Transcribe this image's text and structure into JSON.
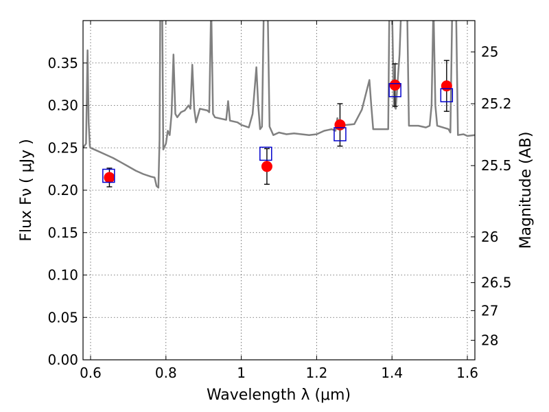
{
  "chart_data": {
    "type": "scatter",
    "title": "",
    "xlabel": "Wavelength  λ (μm)",
    "ylabel": "Flux  Fν  ( μJy )",
    "ylabel_right": "Magnitude (AB)",
    "xlim": [
      0.58,
      1.62
    ],
    "ylim": [
      0.0,
      0.4
    ],
    "grid": true,
    "x_ticks": [
      0.6,
      0.8,
      1.0,
      1.2,
      1.4,
      1.6
    ],
    "x_tick_labels": [
      "0.6",
      "0.8",
      "1",
      "1.2",
      "1.4",
      "1.6"
    ],
    "y_ticks": [
      0.0,
      0.05,
      0.1,
      0.15,
      0.2,
      0.25,
      0.3,
      0.35
    ],
    "y_tick_labels": [
      "0.00",
      "0.05",
      "0.10",
      "0.15",
      "0.20",
      "0.25",
      "0.30",
      "0.35"
    ],
    "right_ticks": [
      {
        "label": "25",
        "flux": 0.363
      },
      {
        "label": "25.2",
        "flux": 0.302
      },
      {
        "label": "25.5",
        "flux": 0.229
      },
      {
        "label": "26",
        "flux": 0.145
      },
      {
        "label": "26.5",
        "flux": 0.091
      },
      {
        "label": "27",
        "flux": 0.058
      },
      {
        "label": "28",
        "flux": 0.023
      }
    ],
    "series": [
      {
        "name": "model spectrum",
        "kind": "line",
        "color": "#808080",
        "points": [
          [
            0.58,
            0.25
          ],
          [
            0.588,
            0.255
          ],
          [
            0.59,
            0.31
          ],
          [
            0.592,
            0.365
          ],
          [
            0.595,
            0.28
          ],
          [
            0.598,
            0.252
          ],
          [
            0.6,
            0.25
          ],
          [
            0.62,
            0.246
          ],
          [
            0.64,
            0.242
          ],
          [
            0.66,
            0.238
          ],
          [
            0.68,
            0.233
          ],
          [
            0.7,
            0.228
          ],
          [
            0.72,
            0.223
          ],
          [
            0.74,
            0.219
          ],
          [
            0.76,
            0.216
          ],
          [
            0.77,
            0.215
          ],
          [
            0.775,
            0.205
          ],
          [
            0.78,
            0.203
          ],
          [
            0.783,
            0.26
          ],
          [
            0.785,
            0.42
          ],
          [
            0.79,
            0.42
          ],
          [
            0.793,
            0.248
          ],
          [
            0.8,
            0.255
          ],
          [
            0.805,
            0.27
          ],
          [
            0.81,
            0.265
          ],
          [
            0.815,
            0.29
          ],
          [
            0.82,
            0.36
          ],
          [
            0.825,
            0.29
          ],
          [
            0.83,
            0.286
          ],
          [
            0.84,
            0.292
          ],
          [
            0.85,
            0.294
          ],
          [
            0.86,
            0.3
          ],
          [
            0.865,
            0.296
          ],
          [
            0.87,
            0.348
          ],
          [
            0.875,
            0.296
          ],
          [
            0.88,
            0.28
          ],
          [
            0.89,
            0.296
          ],
          [
            0.91,
            0.294
          ],
          [
            0.915,
            0.292
          ],
          [
            0.92,
            0.42
          ],
          [
            0.925,
            0.29
          ],
          [
            0.93,
            0.286
          ],
          [
            0.95,
            0.284
          ],
          [
            0.96,
            0.283
          ],
          [
            0.965,
            0.305
          ],
          [
            0.97,
            0.282
          ],
          [
            0.99,
            0.28
          ],
          [
            1.0,
            0.277
          ],
          [
            1.02,
            0.274
          ],
          [
            1.03,
            0.29
          ],
          [
            1.04,
            0.345
          ],
          [
            1.045,
            0.3
          ],
          [
            1.05,
            0.272
          ],
          [
            1.055,
            0.275
          ],
          [
            1.06,
            0.42
          ],
          [
            1.07,
            0.42
          ],
          [
            1.075,
            0.275
          ],
          [
            1.085,
            0.265
          ],
          [
            1.1,
            0.268
          ],
          [
            1.12,
            0.266
          ],
          [
            1.14,
            0.267
          ],
          [
            1.16,
            0.266
          ],
          [
            1.18,
            0.265
          ],
          [
            1.2,
            0.266
          ],
          [
            1.22,
            0.27
          ],
          [
            1.23,
            0.271
          ],
          [
            1.24,
            0.272
          ],
          [
            1.25,
            0.27
          ],
          [
            1.255,
            0.285
          ],
          [
            1.26,
            0.276
          ],
          [
            1.28,
            0.277
          ],
          [
            1.3,
            0.278
          ],
          [
            1.32,
            0.295
          ],
          [
            1.34,
            0.33
          ],
          [
            1.345,
            0.3
          ],
          [
            1.35,
            0.272
          ],
          [
            1.38,
            0.272
          ],
          [
            1.39,
            0.272
          ],
          [
            1.393,
            0.42
          ],
          [
            1.4,
            0.42
          ],
          [
            1.405,
            0.3
          ],
          [
            1.41,
            0.296
          ],
          [
            1.42,
            0.36
          ],
          [
            1.425,
            0.42
          ],
          [
            1.44,
            0.42
          ],
          [
            1.445,
            0.276
          ],
          [
            1.47,
            0.276
          ],
          [
            1.49,
            0.274
          ],
          [
            1.5,
            0.276
          ],
          [
            1.505,
            0.3
          ],
          [
            1.51,
            0.42
          ],
          [
            1.515,
            0.3
          ],
          [
            1.52,
            0.276
          ],
          [
            1.55,
            0.272
          ],
          [
            1.555,
            0.268
          ],
          [
            1.56,
            0.42
          ],
          [
            1.57,
            0.42
          ],
          [
            1.575,
            0.265
          ],
          [
            1.59,
            0.266
          ],
          [
            1.6,
            0.264
          ],
          [
            1.62,
            0.265
          ]
        ]
      },
      {
        "name": "model photometry",
        "kind": "open-square",
        "color": "#0000cc",
        "points": [
          [
            0.648,
            0.217
          ],
          [
            1.065,
            0.243
          ],
          [
            1.262,
            0.266
          ],
          [
            1.408,
            0.318
          ],
          [
            1.545,
            0.312
          ]
        ]
      },
      {
        "name": "observed",
        "kind": "filled-circle-errorbar",
        "color": "#ff0000",
        "points": [
          {
            "x": 0.65,
            "y": 0.215,
            "err": 0.011
          },
          {
            "x": 1.068,
            "y": 0.228,
            "err": 0.021
          },
          {
            "x": 1.262,
            "y": 0.277,
            "err": 0.025
          },
          {
            "x": 1.408,
            "y": 0.324,
            "err": 0.025
          },
          {
            "x": 1.545,
            "y": 0.323,
            "err": 0.03
          }
        ]
      }
    ]
  }
}
